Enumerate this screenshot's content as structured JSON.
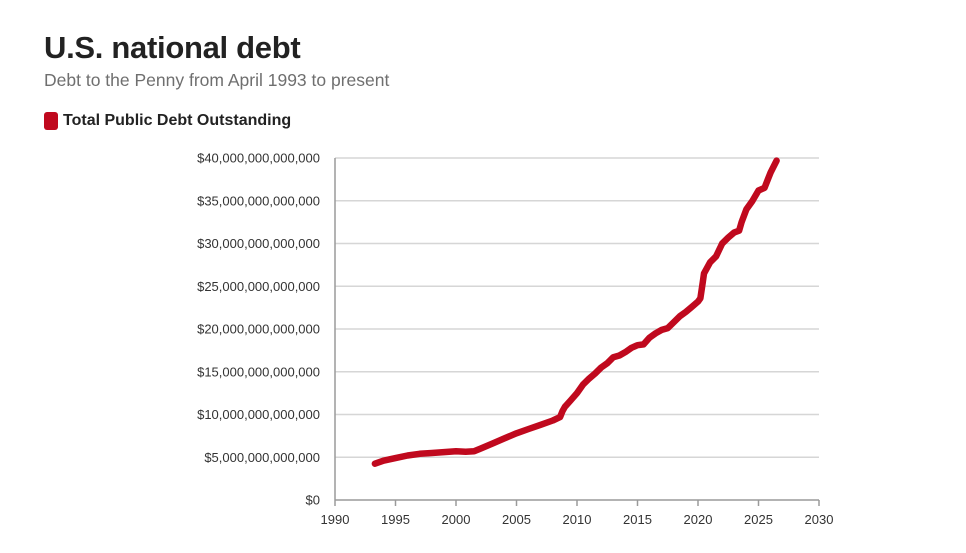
{
  "header": {
    "title": "U.S. national debt",
    "subtitle": "Debt to the Penny from April 1993 to present"
  },
  "colors": {
    "series": "#c0091e",
    "grid": "#d6d6d6",
    "axis": "#9a9a9a"
  },
  "chart_data": {
    "type": "line",
    "title": "U.S. national debt",
    "subtitle": "Debt to the Penny from April 1993 to present",
    "xlabel": "",
    "ylabel": "",
    "xlim": [
      1990,
      2030
    ],
    "ylim": [
      0,
      40000000000000
    ],
    "x_ticks": [
      1990,
      1995,
      2000,
      2005,
      2010,
      2015,
      2020,
      2025,
      2030
    ],
    "x_tick_labels": [
      "1990",
      "1995",
      "2000",
      "2005",
      "2010",
      "2015",
      "2020",
      "2025",
      "2030"
    ],
    "y_ticks": [
      0,
      5000000000000,
      10000000000000,
      15000000000000,
      20000000000000,
      25000000000000,
      30000000000000,
      35000000000000,
      40000000000000
    ],
    "y_tick_labels": [
      "$0",
      "$5,000,000,000,000",
      "$10,000,000,000,000",
      "$15,000,000,000,000",
      "$20,000,000,000,000",
      "$25,000,000,000,000",
      "$30,000,000,000,000",
      "$35,000,000,000,000",
      "$40,000,000,000,000"
    ],
    "grid": "horizontal",
    "legend_position": "top-left",
    "series": [
      {
        "name": "Total Public Debt Outstanding",
        "color": "#c0091e",
        "x": [
          1993.3,
          1994.0,
          1995.0,
          1996.0,
          1997.0,
          1998.0,
          1999.0,
          2000.0,
          2000.8,
          2001.5,
          2002.0,
          2003.0,
          2004.0,
          2005.0,
          2006.0,
          2007.0,
          2008.0,
          2008.6,
          2008.8,
          2009.0,
          2009.5,
          2010.0,
          2010.5,
          2011.0,
          2011.5,
          2012.0,
          2012.5,
          2013.0,
          2013.5,
          2014.0,
          2014.5,
          2015.0,
          2015.5,
          2016.0,
          2016.5,
          2017.0,
          2017.5,
          2018.0,
          2018.5,
          2019.0,
          2019.5,
          2020.0,
          2020.2,
          2020.4,
          2020.5,
          2021.0,
          2021.5,
          2022.0,
          2022.5,
          2023.0,
          2023.4,
          2023.6,
          2024.0,
          2024.5,
          2025.0,
          2025.5,
          2025.8,
          2026.0,
          2026.5
        ],
        "values": [
          4250000000000,
          4600000000000,
          4900000000000,
          5200000000000,
          5400000000000,
          5500000000000,
          5600000000000,
          5700000000000,
          5650000000000,
          5700000000000,
          6000000000000,
          6600000000000,
          7200000000000,
          7800000000000,
          8300000000000,
          8800000000000,
          9300000000000,
          9700000000000,
          10400000000000,
          10900000000000,
          11700000000000,
          12500000000000,
          13500000000000,
          14200000000000,
          14800000000000,
          15500000000000,
          16000000000000,
          16700000000000,
          16900000000000,
          17300000000000,
          17800000000000,
          18100000000000,
          18200000000000,
          19000000000000,
          19500000000000,
          19900000000000,
          20100000000000,
          20800000000000,
          21500000000000,
          22000000000000,
          22600000000000,
          23200000000000,
          23600000000000,
          25500000000000,
          26500000000000,
          27800000000000,
          28500000000000,
          30000000000000,
          30700000000000,
          31300000000000,
          31500000000000,
          32500000000000,
          34000000000000,
          35000000000000,
          36200000000000,
          36500000000000,
          37600000000000,
          38300000000000,
          39700000000000
        ]
      }
    ]
  }
}
